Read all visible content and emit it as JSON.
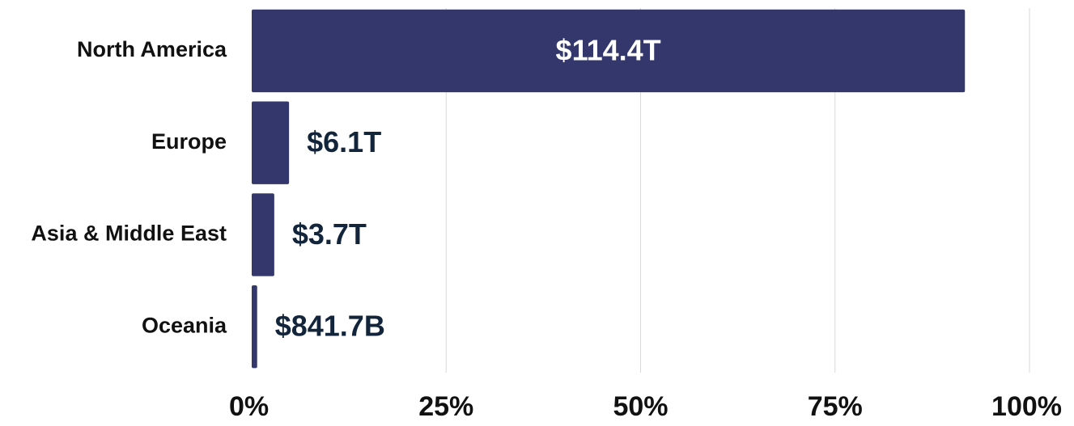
{
  "chart_data": {
    "type": "barh",
    "categories": [
      "North America",
      "Europe",
      "Asia & Middle East",
      "Oceania"
    ],
    "values": [
      91.7,
      4.8,
      2.9,
      0.7
    ],
    "bar_labels": [
      "$114.4T",
      "$6.1T",
      "$3.7T",
      "$841.7B"
    ],
    "color": "#33376b",
    "xlim": [
      0,
      100
    ],
    "xticks": [
      {
        "value": 0,
        "label": "0%"
      },
      {
        "value": 25,
        "label": "25%"
      },
      {
        "value": 50,
        "label": "50%"
      },
      {
        "value": 75,
        "label": "75%"
      },
      {
        "value": 100,
        "label": "100%"
      }
    ],
    "grid": true
  }
}
